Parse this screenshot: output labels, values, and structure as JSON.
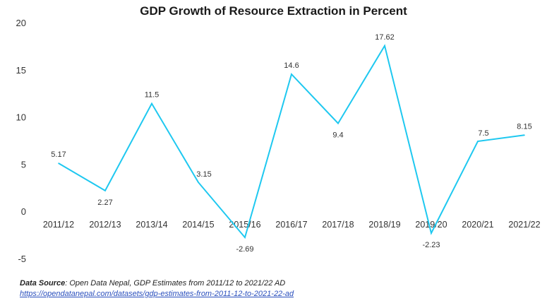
{
  "chart_data": {
    "type": "line",
    "title": "GDP Growth of Resource Extraction in Percent",
    "categories": [
      "2011/12",
      "2012/13",
      "2013/14",
      "2014/15",
      "2015/16",
      "2016/17",
      "2017/18",
      "2018/19",
      "2019/20",
      "2020/21",
      "2021/22"
    ],
    "series": [
      {
        "values": [
          5.17,
          2.27,
          11.5,
          3.15,
          -2.69,
          14.6,
          9.4,
          17.62,
          -2.23,
          7.5,
          8.15
        ],
        "color": "#1ec8f0"
      }
    ],
    "data_labels": [
      "5.17",
      "2.27",
      "11.5",
      "3.15",
      "-2.69",
      "14.6",
      "9.4",
      "17.62",
      "-2.23",
      "7.5",
      "8.15"
    ],
    "ylim": [
      -5,
      20
    ],
    "yticks": [
      "-5",
      "0",
      "5",
      "10",
      "15",
      "20"
    ],
    "grid": false,
    "legend": "none"
  },
  "source": {
    "prefix": "Data Source",
    "text": ": Open Data Nepal,  GDP Estimates from 2011/12 to 2021/22 AD",
    "link": "https://opendatanepal.com/datasets/gdp-estimates-from-2011-12-to-2021-22-ad"
  }
}
